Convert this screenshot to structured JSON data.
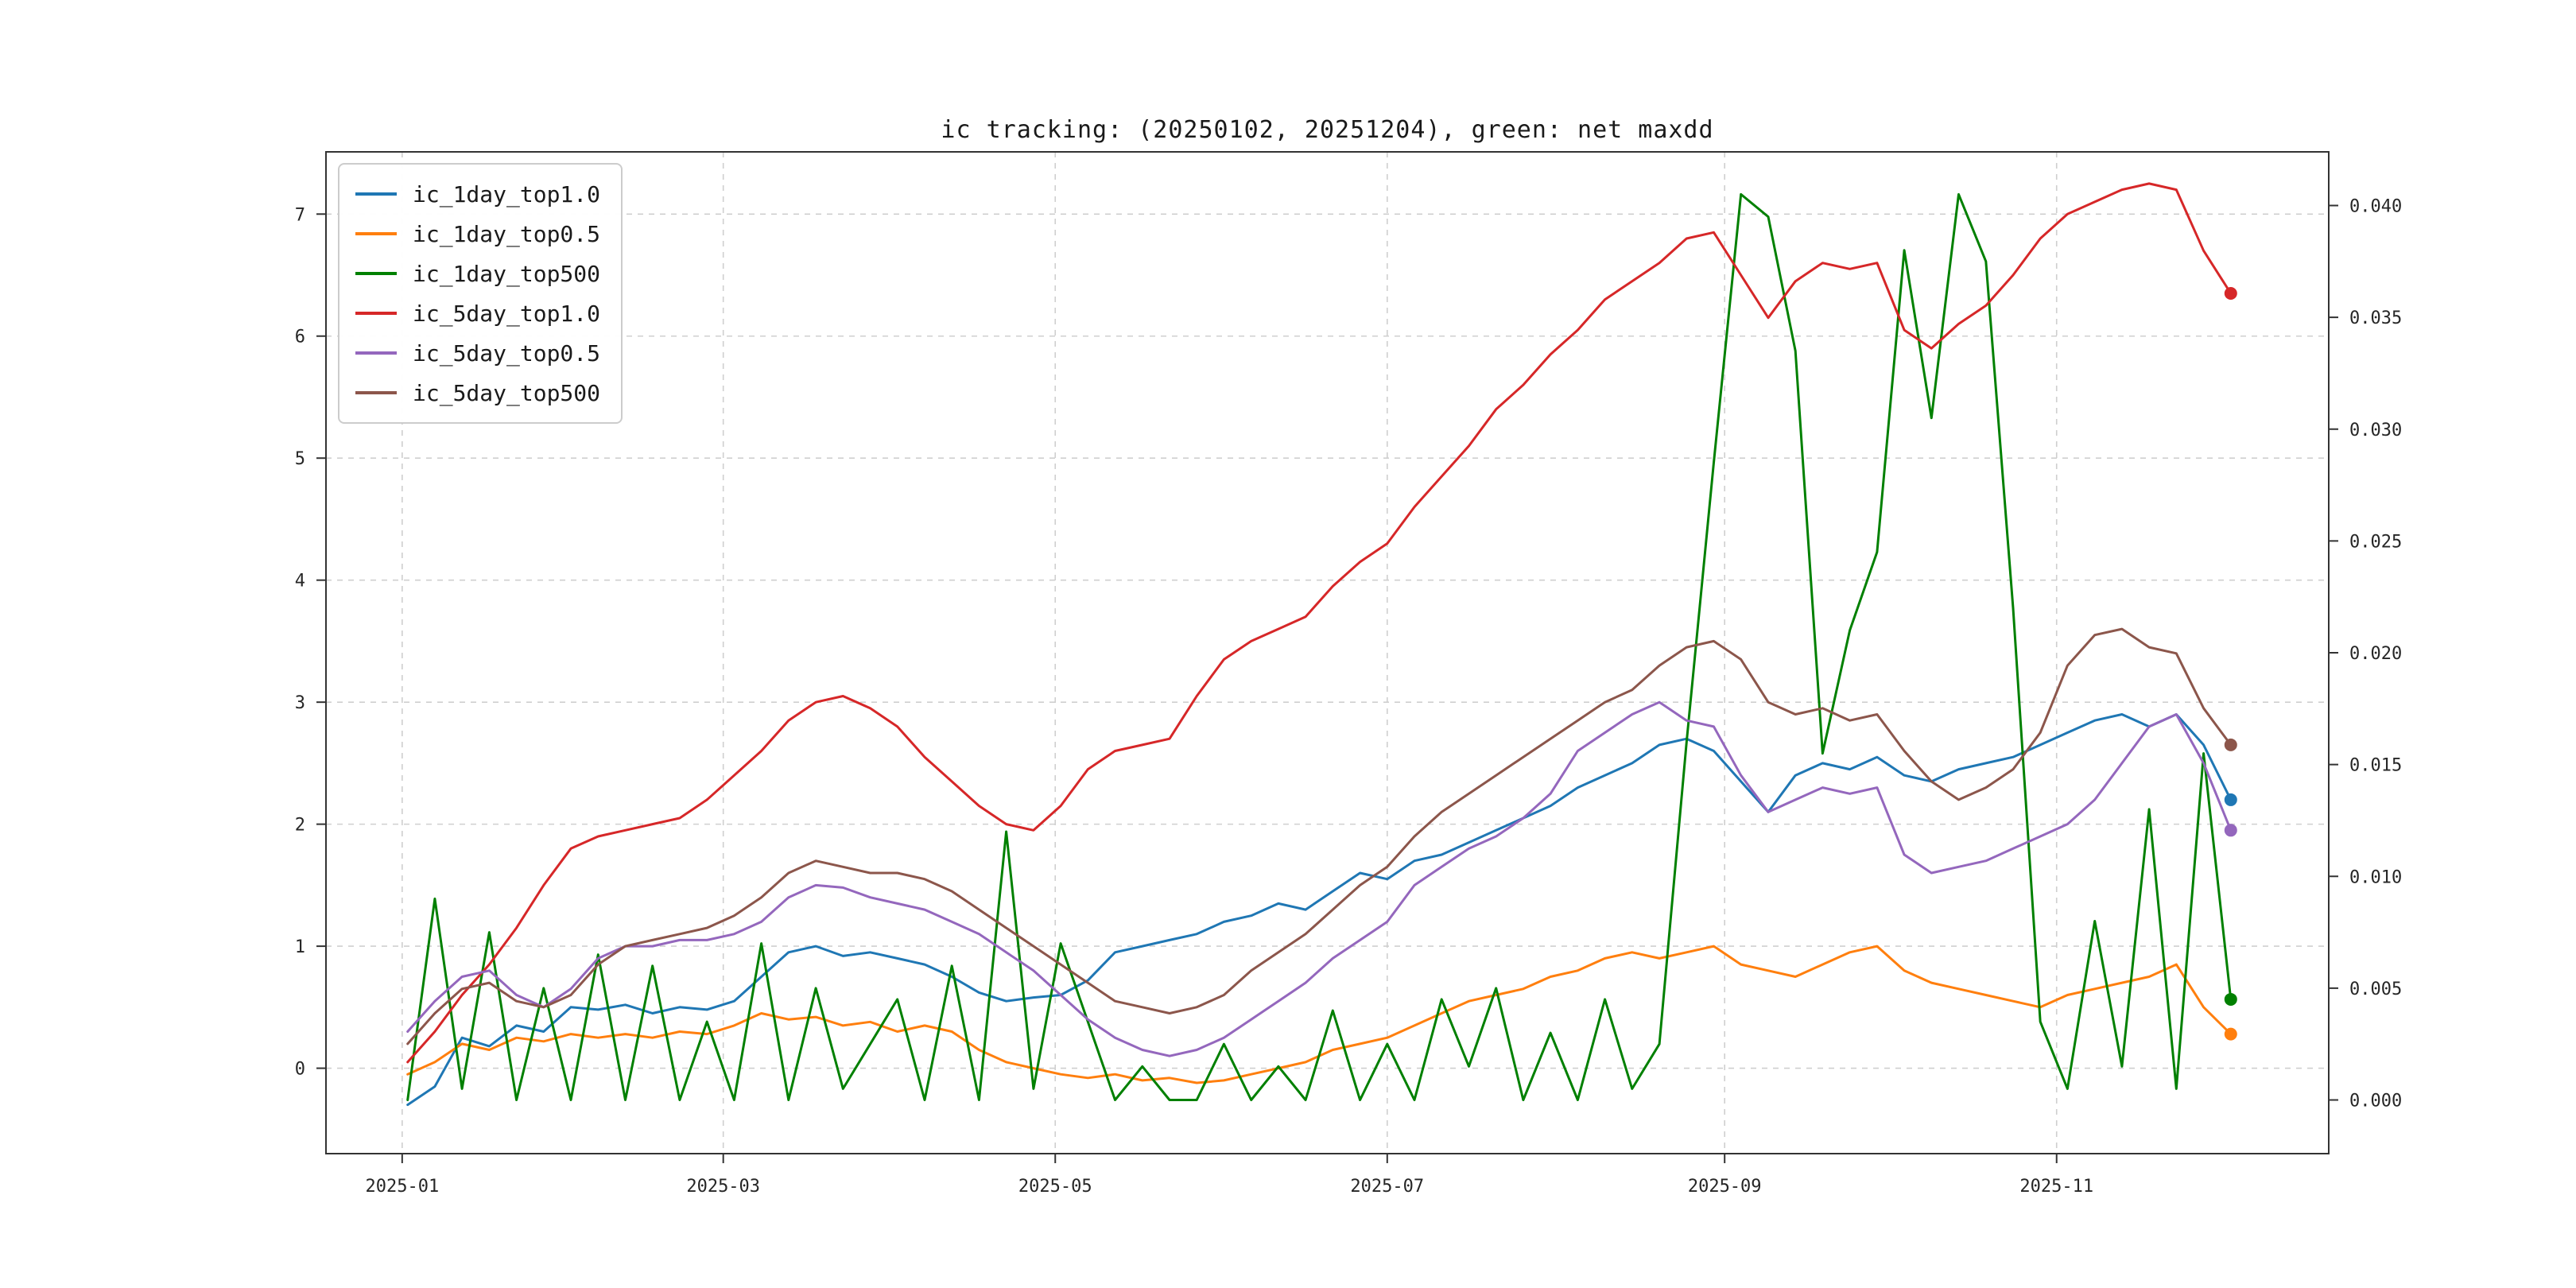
{
  "chart_data": {
    "type": "line",
    "title": "ic tracking: (20250102, 20251204), green: net maxdd",
    "grid": true,
    "legend_position": "upper-left",
    "x_range": [
      -14,
      354
    ],
    "x_ticks": [
      {
        "label": "2025-01",
        "day": 0
      },
      {
        "label": "2025-03",
        "day": 59
      },
      {
        "label": "2025-05",
        "day": 120
      },
      {
        "label": "2025-07",
        "day": 181
      },
      {
        "label": "2025-09",
        "day": 243
      },
      {
        "label": "2025-11",
        "day": 304
      }
    ],
    "left_axis": {
      "range": [
        -0.7,
        7.51
      ],
      "ticks": [
        {
          "label": "0",
          "value": 0
        },
        {
          "label": "1",
          "value": 1
        },
        {
          "label": "2",
          "value": 2
        },
        {
          "label": "3",
          "value": 3
        },
        {
          "label": "4",
          "value": 4
        },
        {
          "label": "5",
          "value": 5
        },
        {
          "label": "6",
          "value": 6
        },
        {
          "label": "7",
          "value": 7
        }
      ]
    },
    "right_axis": {
      "range": [
        -0.0024,
        0.0424
      ],
      "ticks": [
        {
          "label": "0.000",
          "value": 0.0
        },
        {
          "label": "0.005",
          "value": 0.005
        },
        {
          "label": "0.010",
          "value": 0.01
        },
        {
          "label": "0.015",
          "value": 0.015
        },
        {
          "label": "0.020",
          "value": 0.02
        },
        {
          "label": "0.025",
          "value": 0.025
        },
        {
          "label": "0.030",
          "value": 0.03
        },
        {
          "label": "0.035",
          "value": 0.035
        },
        {
          "label": "0.040",
          "value": 0.04
        }
      ]
    },
    "x_days": [
      1,
      6,
      11,
      16,
      21,
      26,
      31,
      36,
      41,
      46,
      51,
      56,
      61,
      66,
      71,
      76,
      81,
      86,
      91,
      96,
      101,
      106,
      111,
      116,
      121,
      126,
      131,
      136,
      141,
      146,
      151,
      156,
      161,
      166,
      171,
      176,
      181,
      186,
      191,
      196,
      201,
      206,
      211,
      216,
      221,
      226,
      231,
      236,
      241,
      246,
      251,
      256,
      261,
      266,
      271,
      276,
      281,
      286,
      291,
      296,
      301,
      306,
      311,
      316,
      321,
      326,
      331,
      336
    ],
    "series": [
      {
        "name": "ic_1day_top1.0",
        "color": "#1f77b4",
        "axis": "left",
        "values": [
          -0.3,
          -0.15,
          0.25,
          0.18,
          0.35,
          0.3,
          0.5,
          0.48,
          0.52,
          0.45,
          0.5,
          0.48,
          0.55,
          0.75,
          0.95,
          1.0,
          0.92,
          0.95,
          0.9,
          0.85,
          0.75,
          0.62,
          0.55,
          0.58,
          0.6,
          0.72,
          0.95,
          1.0,
          1.05,
          1.1,
          1.2,
          1.25,
          1.35,
          1.3,
          1.45,
          1.6,
          1.55,
          1.7,
          1.75,
          1.85,
          1.95,
          2.05,
          2.15,
          2.3,
          2.4,
          2.5,
          2.65,
          2.7,
          2.6,
          2.35,
          2.1,
          2.4,
          2.5,
          2.45,
          2.55,
          2.4,
          2.35,
          2.45,
          2.5,
          2.55,
          2.65,
          2.75,
          2.85,
          2.9,
          2.8,
          2.9,
          2.65,
          2.2
        ]
      },
      {
        "name": "ic_1day_top0.5",
        "color": "#ff7f0e",
        "axis": "left",
        "values": [
          -0.05,
          0.05,
          0.2,
          0.15,
          0.25,
          0.22,
          0.28,
          0.25,
          0.28,
          0.25,
          0.3,
          0.28,
          0.35,
          0.45,
          0.4,
          0.42,
          0.35,
          0.38,
          0.3,
          0.35,
          0.3,
          0.15,
          0.05,
          0.0,
          -0.05,
          -0.08,
          -0.05,
          -0.1,
          -0.08,
          -0.12,
          -0.1,
          -0.05,
          0.0,
          0.05,
          0.15,
          0.2,
          0.25,
          0.35,
          0.45,
          0.55,
          0.6,
          0.65,
          0.75,
          0.8,
          0.9,
          0.95,
          0.9,
          0.95,
          1.0,
          0.85,
          0.8,
          0.75,
          0.85,
          0.95,
          1.0,
          0.8,
          0.7,
          0.65,
          0.6,
          0.55,
          0.5,
          0.6,
          0.65,
          0.7,
          0.75,
          0.85,
          0.5,
          0.28
        ]
      },
      {
        "name": "ic_1day_top500",
        "color": "#008000",
        "axis": "right",
        "values": [
          0.0,
          0.009,
          0.0005,
          0.0075,
          0.0,
          0.005,
          0.0,
          0.0065,
          0.0,
          0.006,
          0.0,
          0.0035,
          0.0,
          0.007,
          0.0,
          0.005,
          0.0005,
          0.0025,
          0.0045,
          0.0,
          0.006,
          0.0,
          0.012,
          0.0005,
          0.007,
          0.0035,
          0.0,
          0.0015,
          0.0,
          0.0,
          0.0025,
          0.0,
          0.0015,
          0.0,
          0.004,
          0.0,
          0.0025,
          0.0,
          0.0045,
          0.0015,
          0.005,
          0.0,
          0.003,
          0.0,
          0.0045,
          0.0005,
          0.0025,
          0.016,
          0.0285,
          0.0405,
          0.0395,
          0.0335,
          0.0155,
          0.021,
          0.0245,
          0.038,
          0.0305,
          0.0405,
          0.0375,
          0.022,
          0.0035,
          0.0005,
          0.008,
          0.0015,
          0.013,
          0.0005,
          0.0155,
          0.0045
        ]
      },
      {
        "name": "ic_5day_top1.0",
        "color": "#d62728",
        "axis": "left",
        "values": [
          0.05,
          0.3,
          0.6,
          0.85,
          1.15,
          1.5,
          1.8,
          1.9,
          1.95,
          2.0,
          2.05,
          2.2,
          2.4,
          2.6,
          2.85,
          3.0,
          3.05,
          2.95,
          2.8,
          2.55,
          2.35,
          2.15,
          2.0,
          1.95,
          2.15,
          2.45,
          2.6,
          2.65,
          2.7,
          3.05,
          3.35,
          3.5,
          3.6,
          3.7,
          3.95,
          4.15,
          4.3,
          4.6,
          4.85,
          5.1,
          5.4,
          5.6,
          5.85,
          6.05,
          6.3,
          6.45,
          6.6,
          6.8,
          6.85,
          6.5,
          6.15,
          6.45,
          6.6,
          6.55,
          6.6,
          6.05,
          5.9,
          6.1,
          6.25,
          6.5,
          6.8,
          7.0,
          7.1,
          7.2,
          7.25,
          7.2,
          6.7,
          6.35
        ]
      },
      {
        "name": "ic_5day_top0.5",
        "color": "#9467bd",
        "axis": "left",
        "values": [
          0.3,
          0.55,
          0.75,
          0.8,
          0.6,
          0.5,
          0.65,
          0.9,
          1.0,
          1.0,
          1.05,
          1.05,
          1.1,
          1.2,
          1.4,
          1.5,
          1.48,
          1.4,
          1.35,
          1.3,
          1.2,
          1.1,
          0.95,
          0.8,
          0.6,
          0.4,
          0.25,
          0.15,
          0.1,
          0.15,
          0.25,
          0.4,
          0.55,
          0.7,
          0.9,
          1.05,
          1.2,
          1.5,
          1.65,
          1.8,
          1.9,
          2.05,
          2.25,
          2.6,
          2.75,
          2.9,
          3.0,
          2.85,
          2.8,
          2.4,
          2.1,
          2.2,
          2.3,
          2.25,
          2.3,
          1.75,
          1.6,
          1.65,
          1.7,
          1.8,
          1.9,
          2.0,
          2.2,
          2.5,
          2.8,
          2.9,
          2.5,
          1.95
        ]
      },
      {
        "name": "ic_5day_top500",
        "color": "#8c564b",
        "axis": "left",
        "values": [
          0.2,
          0.45,
          0.65,
          0.7,
          0.55,
          0.5,
          0.6,
          0.85,
          1.0,
          1.05,
          1.1,
          1.15,
          1.25,
          1.4,
          1.6,
          1.7,
          1.65,
          1.6,
          1.6,
          1.55,
          1.45,
          1.3,
          1.15,
          1.0,
          0.85,
          0.7,
          0.55,
          0.5,
          0.45,
          0.5,
          0.6,
          0.8,
          0.95,
          1.1,
          1.3,
          1.5,
          1.65,
          1.9,
          2.1,
          2.25,
          2.4,
          2.55,
          2.7,
          2.85,
          3.0,
          3.1,
          3.3,
          3.45,
          3.5,
          3.35,
          3.0,
          2.9,
          2.95,
          2.85,
          2.9,
          2.6,
          2.35,
          2.2,
          2.3,
          2.45,
          2.75,
          3.3,
          3.55,
          3.6,
          3.45,
          3.4,
          2.95,
          2.65
        ]
      }
    ],
    "style": {
      "grid_color": "#cfcfcf",
      "spine_color": "#333333",
      "tick_text_color": "#262626",
      "background": "#ffffff",
      "line_width": 3,
      "endpoint_dot_radius": 8
    }
  }
}
